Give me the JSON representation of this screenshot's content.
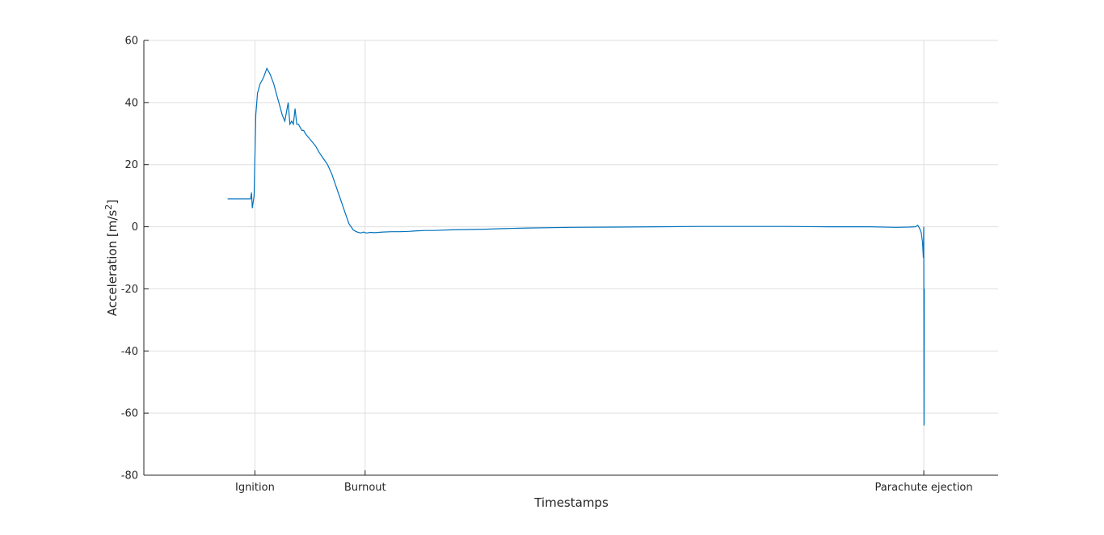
{
  "chart_data": {
    "type": "line",
    "xlabel": "Timestamps",
    "ylabel_main": "Acceleration [m/s",
    "ylabel_sup": "2",
    "ylabel_close": "]",
    "ylim": [
      -80,
      60
    ],
    "yticks": [
      -80,
      -60,
      -40,
      -20,
      0,
      20,
      40,
      60
    ],
    "ytick_labels": [
      "-80",
      "-60",
      "-40",
      "-20",
      "0",
      "20",
      "40",
      "60"
    ],
    "xlim": [
      0,
      100
    ],
    "xticks": [
      {
        "x": 13.0,
        "label": "Ignition"
      },
      {
        "x": 25.9,
        "label": "Burnout"
      },
      {
        "x": 91.3,
        "label": "Parachute ejection"
      }
    ],
    "grid": true,
    "line_color": "#0072bd",
    "series": [
      {
        "x": [
          9.8,
          12.4,
          12.5,
          12.6,
          12.7,
          12.9,
          13.1,
          13.3,
          13.6,
          14.0,
          14.4,
          14.8,
          15.2,
          15.5,
          15.7,
          15.9,
          16.2,
          16.5,
          16.9,
          17.1,
          17.3,
          17.5,
          17.7,
          17.9,
          18.1,
          18.3,
          18.5,
          18.7,
          18.9,
          19.2,
          19.5,
          19.8,
          20.1,
          20.5,
          21.0,
          21.5,
          22.0,
          22.5,
          23.0,
          23.5,
          24.0,
          24.5,
          24.8,
          25.1,
          25.4,
          25.7,
          25.9,
          26.1,
          26.5,
          27.0,
          28.0,
          29.0,
          30.0,
          31.0,
          32.0,
          33.0,
          34.0,
          36.0,
          38.0,
          40.0,
          42.0,
          45.0,
          50.0,
          55.0,
          60.0,
          65.0,
          70.0,
          75.0,
          80.0,
          85.0,
          88.0,
          89.5,
          90.3,
          90.6,
          90.8,
          91.0,
          91.15,
          91.25,
          91.3,
          91.32,
          91.35
        ],
        "y": [
          9,
          9,
          9,
          11,
          6,
          10,
          36,
          43,
          46,
          48,
          51,
          49,
          46,
          43,
          41,
          39,
          36,
          34,
          40,
          33,
          34,
          33,
          38,
          33,
          33,
          32,
          31,
          31,
          30,
          29,
          28,
          27,
          26,
          24,
          22,
          20,
          17,
          13,
          9,
          5,
          1,
          -1,
          -1.5,
          -1.8,
          -2,
          -1.7,
          -1.9,
          -2,
          -1.8,
          -1.9,
          -1.7,
          -1.6,
          -1.6,
          -1.5,
          -1.3,
          -1.2,
          -1.2,
          -1.0,
          -0.9,
          -0.8,
          -0.6,
          -0.4,
          -0.2,
          -0.1,
          0,
          0.1,
          0.1,
          0.1,
          0,
          0,
          -0.2,
          -0.1,
          0,
          0.5,
          -0.5,
          -2,
          -5,
          -10,
          0,
          -64,
          -20
        ]
      }
    ]
  }
}
